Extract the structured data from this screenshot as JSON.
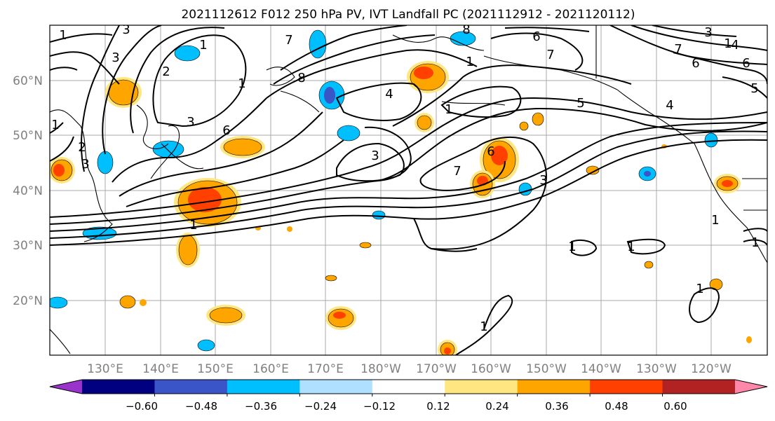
{
  "title": "2021112612 F012 250 hPa PV, IVT Landfall PC (2021112912 - 2021120112)",
  "map": {
    "lon_labels": [
      "130°E",
      "140°E",
      "150°E",
      "160°E",
      "170°E",
      "180°W",
      "170°W",
      "160°W",
      "150°W",
      "140°W",
      "130°W",
      "120°W"
    ],
    "lat_labels": [
      "60°N",
      "50°N",
      "40°N",
      "30°N",
      "20°N"
    ],
    "grid_color": "#a8a8a8",
    "tick_label_color": "#808080"
  },
  "contour_labels": [
    "3",
    "1",
    "2",
    "3",
    "7",
    "8",
    "1",
    "8",
    "7",
    "6",
    "3",
    "3",
    "7",
    "6",
    "1",
    "1",
    "3",
    "6",
    "3",
    "4",
    "5",
    "4",
    "7",
    "1",
    "6",
    "5",
    "4",
    "1",
    "6",
    "3",
    "1",
    "2",
    "1",
    "1",
    "1",
    "1",
    "1",
    "1",
    "1"
  ],
  "colorbar": {
    "ticks": [
      "−0.60",
      "−0.48",
      "−0.36",
      "−0.24",
      "−0.12",
      "0.12",
      "0.24",
      "0.36",
      "0.48",
      "0.60"
    ],
    "colors": [
      "#9933cc",
      "#000080",
      "#3a55c8",
      "#00bfff",
      "#b0e0ff",
      "#ffffff",
      "#ffe680",
      "#ffa500",
      "#ff4000",
      "#b22222",
      "#ff88aa"
    ]
  }
}
